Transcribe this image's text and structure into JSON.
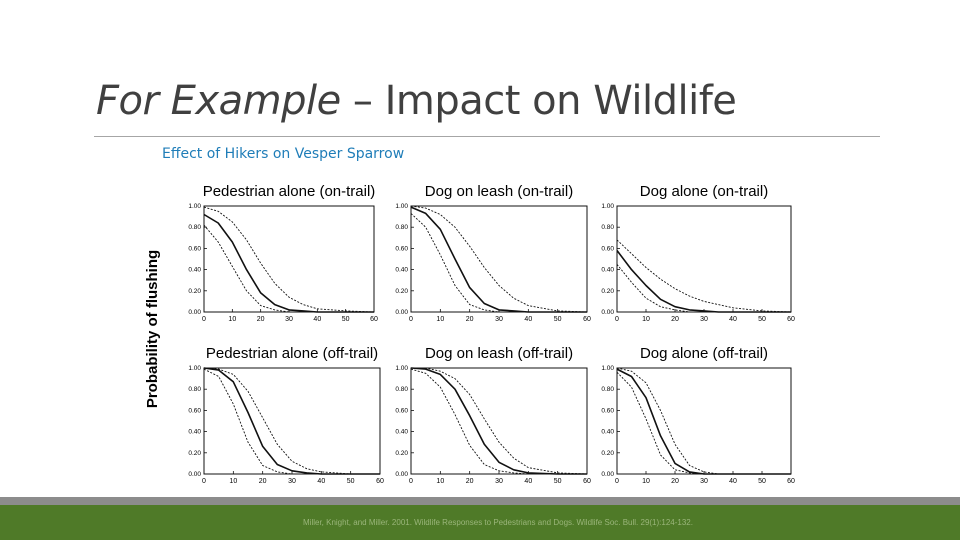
{
  "slide": {
    "title_italic": "For Example",
    "title_rest": " – Impact on Wildlife",
    "subtitle": "Effect of Hikers on Vesper Sparrow",
    "citation": "Miller, Knight, and Miller. 2001. Wildlife Responses to Pedestrians and Dogs. Wildlife Soc. Bull. 29(1):124-132.",
    "colors": {
      "title": "#404040",
      "subtitle": "#1f7db8",
      "footer": "#4f7a28",
      "footer_band": "#8c8c8c"
    }
  },
  "chart_data": {
    "type": "line",
    "ylabel": "Probability of flushing",
    "xlim": [
      0,
      60
    ],
    "ylim": [
      0,
      1
    ],
    "xticks": [
      "0",
      "10",
      "20",
      "30",
      "40",
      "50",
      "60"
    ],
    "yticks": [
      "0.00",
      "0.20",
      "0.40",
      "0.60",
      "0.80",
      "1.00"
    ],
    "grid": false,
    "panels": [
      {
        "title": "Pedestrian alone (on-trail)",
        "x": [
          0,
          5,
          10,
          15,
          20,
          25,
          30,
          35,
          40,
          50,
          60
        ],
        "series": [
          {
            "style": "solid",
            "values": [
              0.92,
              0.84,
              0.66,
              0.4,
              0.18,
              0.07,
              0.02,
              0.01,
              0.0,
              0.0,
              0.0
            ]
          },
          {
            "style": "dashed",
            "values": [
              0.99,
              0.95,
              0.85,
              0.68,
              0.46,
              0.27,
              0.14,
              0.07,
              0.03,
              0.01,
              0.0
            ]
          },
          {
            "style": "dashed",
            "values": [
              0.82,
              0.66,
              0.43,
              0.2,
              0.06,
              0.02,
              0.0,
              0.0,
              0.0,
              0.0,
              0.0
            ]
          }
        ]
      },
      {
        "title": "Dog on leash (on-trail)",
        "x": [
          0,
          5,
          10,
          15,
          20,
          25,
          30,
          35,
          40,
          50,
          60
        ],
        "series": [
          {
            "style": "solid",
            "values": [
              0.99,
              0.93,
              0.78,
              0.5,
              0.23,
              0.08,
              0.02,
              0.01,
              0.0,
              0.0,
              0.0
            ]
          },
          {
            "style": "dashed",
            "values": [
              1.0,
              0.98,
              0.92,
              0.8,
              0.62,
              0.42,
              0.25,
              0.13,
              0.06,
              0.01,
              0.0
            ]
          },
          {
            "style": "dashed",
            "values": [
              0.93,
              0.8,
              0.54,
              0.25,
              0.07,
              0.02,
              0.0,
              0.0,
              0.0,
              0.0,
              0.0
            ]
          }
        ]
      },
      {
        "title": "Dog alone (on-trail)",
        "x": [
          0,
          5,
          10,
          15,
          20,
          25,
          30,
          35,
          40,
          50,
          60
        ],
        "series": [
          {
            "style": "solid",
            "values": [
              0.58,
              0.4,
              0.25,
              0.12,
              0.05,
              0.02,
              0.01,
              0.0,
              0.0,
              0.0,
              0.0
            ]
          },
          {
            "style": "dashed",
            "values": [
              0.68,
              0.55,
              0.42,
              0.31,
              0.22,
              0.15,
              0.1,
              0.07,
              0.04,
              0.01,
              0.0
            ]
          },
          {
            "style": "dashed",
            "values": [
              0.45,
              0.28,
              0.13,
              0.05,
              0.02,
              0.0,
              0.0,
              0.0,
              0.0,
              0.0,
              0.0
            ]
          }
        ]
      },
      {
        "title": "Pedestrian alone (off-trail)",
        "x": [
          0,
          5,
          10,
          15,
          20,
          25,
          30,
          35,
          40,
          50,
          60
        ],
        "series": [
          {
            "style": "solid",
            "values": [
              1.0,
              0.98,
              0.87,
              0.58,
              0.26,
              0.09,
              0.03,
              0.01,
              0.0,
              0.0,
              0.0
            ]
          },
          {
            "style": "dashed",
            "values": [
              1.0,
              0.99,
              0.94,
              0.78,
              0.53,
              0.28,
              0.12,
              0.05,
              0.02,
              0.0,
              0.0
            ]
          },
          {
            "style": "dashed",
            "values": [
              0.99,
              0.92,
              0.66,
              0.3,
              0.08,
              0.02,
              0.0,
              0.0,
              0.0,
              0.0,
              0.0
            ]
          }
        ]
      },
      {
        "title": "Dog on leash (off-trail)",
        "x": [
          0,
          5,
          10,
          15,
          20,
          25,
          30,
          35,
          40,
          50,
          60
        ],
        "series": [
          {
            "style": "solid",
            "values": [
              1.0,
              0.99,
              0.94,
              0.8,
              0.55,
              0.28,
              0.11,
              0.04,
              0.01,
              0.0,
              0.0
            ]
          },
          {
            "style": "dashed",
            "values": [
              1.0,
              1.0,
              0.97,
              0.9,
              0.75,
              0.52,
              0.3,
              0.15,
              0.06,
              0.01,
              0.0
            ]
          },
          {
            "style": "dashed",
            "values": [
              0.99,
              0.95,
              0.82,
              0.56,
              0.27,
              0.09,
              0.03,
              0.01,
              0.0,
              0.0,
              0.0
            ]
          }
        ]
      },
      {
        "title": "Dog alone (off-trail)",
        "x": [
          0,
          5,
          10,
          15,
          20,
          25,
          30,
          35,
          40,
          50,
          60
        ],
        "series": [
          {
            "style": "solid",
            "values": [
              0.99,
              0.92,
              0.72,
              0.36,
              0.1,
              0.02,
              0.0,
              0.0,
              0.0,
              0.0,
              0.0
            ]
          },
          {
            "style": "dashed",
            "values": [
              1.0,
              0.97,
              0.86,
              0.6,
              0.28,
              0.08,
              0.02,
              0.0,
              0.0,
              0.0,
              0.0
            ]
          },
          {
            "style": "dashed",
            "values": [
              0.96,
              0.82,
              0.52,
              0.18,
              0.04,
              0.01,
              0.0,
              0.0,
              0.0,
              0.0,
              0.0
            ]
          }
        ]
      }
    ]
  }
}
